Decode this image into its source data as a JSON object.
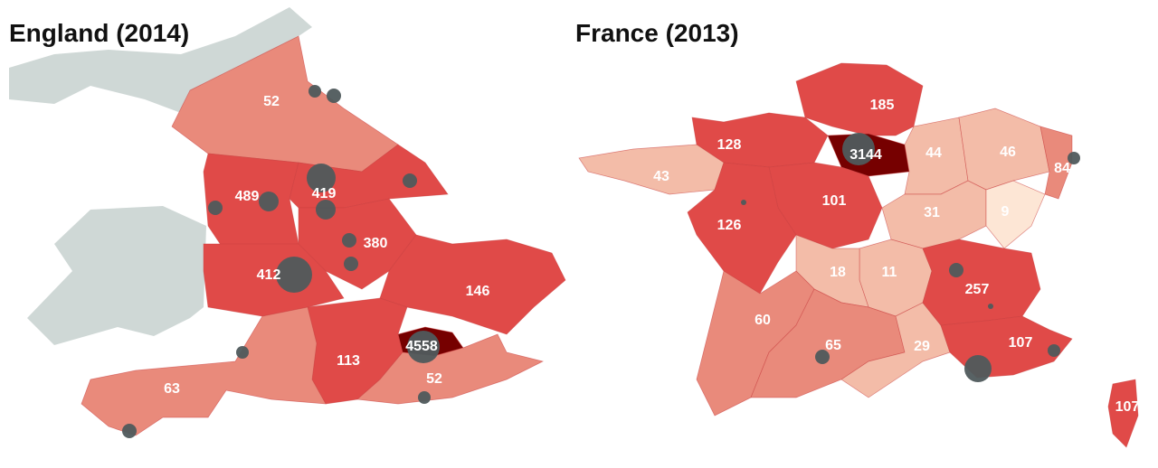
{
  "maps": [
    {
      "title": "England (2014)",
      "regions": [
        52,
        489,
        419,
        380,
        412,
        146,
        4558,
        113,
        52,
        63
      ]
    },
    {
      "title": "France (2013)",
      "regions": [
        185,
        3144,
        128,
        43,
        101,
        126,
        44,
        46,
        84,
        31,
        9,
        11,
        18,
        60,
        65,
        29,
        257,
        107,
        107
      ]
    }
  ]
}
